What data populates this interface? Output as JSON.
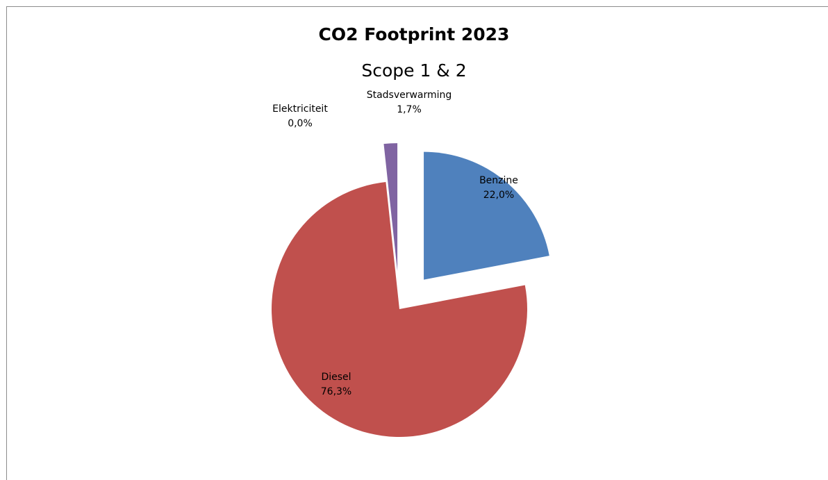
{
  "chart_data": {
    "type": "pie",
    "title": "CO2 Footprint 2023",
    "subtitle": "Scope 1 & 2",
    "slices": [
      {
        "name": "Benzine",
        "percent_label": "22,0%",
        "value": 22.0,
        "color": "#4f81bd",
        "exploded": true
      },
      {
        "name": "Diesel",
        "percent_label": "76,3%",
        "value": 76.3,
        "color": "#c0504d",
        "exploded": false
      },
      {
        "name": "Elektriciteit",
        "percent_label": "0,0%",
        "value": 0.0,
        "color": "#9bbb59",
        "exploded": true
      },
      {
        "name": "Stadsverwarming",
        "percent_label": "1,7%",
        "value": 1.7,
        "color": "#8064a2",
        "exploded": true
      }
    ],
    "legend": "none",
    "data_labels": "category name and percentage"
  }
}
